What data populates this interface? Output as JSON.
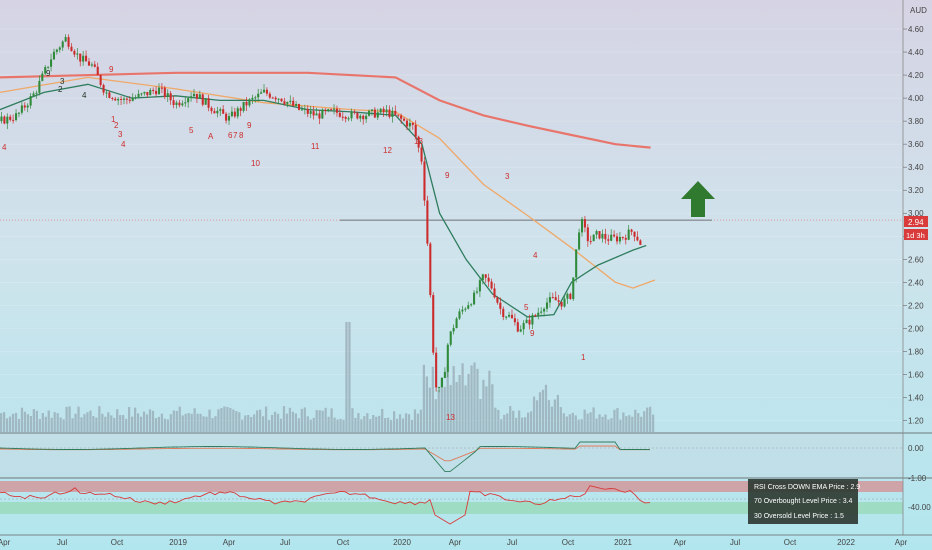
{
  "chart_data": {
    "type": "candlestick",
    "currency": "AUD",
    "price_axis": {
      "min": 1.1,
      "max": 4.8,
      "ticks": [
        "4.60",
        "4.40",
        "4.20",
        "4.00",
        "3.80",
        "3.60",
        "3.40",
        "3.20",
        "3.00",
        "2.80",
        "2.60",
        "2.40",
        "2.20",
        "2.00",
        "1.80",
        "1.60",
        "1.40",
        "1.20"
      ]
    },
    "time_axis": {
      "labels": [
        "Apr",
        "Jul",
        "Oct",
        "2019",
        "Apr",
        "Jul",
        "Oct",
        "2020",
        "Apr",
        "Jul",
        "Oct",
        "2021",
        "Apr",
        "Jul",
        "Oct",
        "2022",
        "Apr"
      ]
    },
    "last_price": "2.94",
    "last_price_value": 2.94,
    "interval_label": "1d 3h",
    "resistance_level": 2.94,
    "arrow_direction": "up",
    "price_path": [
      [
        0,
        3.8
      ],
      [
        0.02,
        3.85
      ],
      [
        0.04,
        4.05
      ],
      [
        0.06,
        4.38
      ],
      [
        0.075,
        4.52
      ],
      [
        0.09,
        4.35
      ],
      [
        0.105,
        4.28
      ],
      [
        0.12,
        4.05
      ],
      [
        0.14,
        3.98
      ],
      [
        0.16,
        4.02
      ],
      [
        0.18,
        4.08
      ],
      [
        0.2,
        3.95
      ],
      [
        0.22,
        4.05
      ],
      [
        0.24,
        3.92
      ],
      [
        0.26,
        3.82
      ],
      [
        0.28,
        3.95
      ],
      [
        0.3,
        4.05
      ],
      [
        0.32,
        4.0
      ],
      [
        0.34,
        3.9
      ],
      [
        0.36,
        3.85
      ],
      [
        0.38,
        3.88
      ],
      [
        0.4,
        3.85
      ],
      [
        0.42,
        3.86
      ],
      [
        0.44,
        3.88
      ],
      [
        0.455,
        3.82
      ],
      [
        0.47,
        3.75
      ],
      [
        0.48,
        3.45
      ],
      [
        0.485,
        2.9
      ],
      [
        0.49,
        2.2
      ],
      [
        0.495,
        1.5
      ],
      [
        0.5,
        1.45
      ],
      [
        0.505,
        1.6
      ],
      [
        0.51,
        1.9
      ],
      [
        0.52,
        2.1
      ],
      [
        0.53,
        2.2
      ],
      [
        0.54,
        2.28
      ],
      [
        0.55,
        2.45
      ],
      [
        0.56,
        2.35
      ],
      [
        0.57,
        2.15
      ],
      [
        0.58,
        2.1
      ],
      [
        0.59,
        2.0
      ],
      [
        0.6,
        2.05
      ],
      [
        0.61,
        2.12
      ],
      [
        0.62,
        2.22
      ],
      [
        0.63,
        2.25
      ],
      [
        0.64,
        2.22
      ],
      [
        0.65,
        2.3
      ],
      [
        0.655,
        2.65
      ],
      [
        0.66,
        2.95
      ],
      [
        0.67,
        2.75
      ],
      [
        0.68,
        2.82
      ],
      [
        0.69,
        2.78
      ],
      [
        0.7,
        2.78
      ],
      [
        0.71,
        2.8
      ],
      [
        0.72,
        2.85
      ],
      [
        0.73,
        2.72
      ]
    ],
    "moving_averages": [
      {
        "color": "#e8756b",
        "points": [
          [
            0,
            4.18
          ],
          [
            0.2,
            4.22
          ],
          [
            0.35,
            4.22
          ],
          [
            0.45,
            4.18
          ],
          [
            0.5,
            3.98
          ],
          [
            0.55,
            3.85
          ],
          [
            0.6,
            3.76
          ],
          [
            0.65,
            3.68
          ],
          [
            0.7,
            3.6
          ],
          [
            0.74,
            3.57
          ]
        ]
      },
      {
        "color": "#f0a868",
        "points": [
          [
            0,
            4.05
          ],
          [
            0.1,
            4.18
          ],
          [
            0.2,
            4.08
          ],
          [
            0.3,
            3.96
          ],
          [
            0.4,
            3.9
          ],
          [
            0.45,
            3.88
          ],
          [
            0.5,
            3.65
          ],
          [
            0.55,
            3.25
          ],
          [
            0.6,
            2.98
          ],
          [
            0.65,
            2.7
          ],
          [
            0.7,
            2.4
          ],
          [
            0.72,
            2.35
          ],
          [
            0.745,
            2.42
          ]
        ]
      },
      {
        "color": "#2f7d5e",
        "points": [
          [
            0,
            3.9
          ],
          [
            0.05,
            4.05
          ],
          [
            0.1,
            4.12
          ],
          [
            0.15,
            4.0
          ],
          [
            0.2,
            4.02
          ],
          [
            0.25,
            3.98
          ],
          [
            0.3,
            3.98
          ],
          [
            0.35,
            3.9
          ],
          [
            0.4,
            3.88
          ],
          [
            0.45,
            3.85
          ],
          [
            0.48,
            3.6
          ],
          [
            0.5,
            3.0
          ],
          [
            0.53,
            2.6
          ],
          [
            0.56,
            2.3
          ],
          [
            0.6,
            2.1
          ],
          [
            0.63,
            2.12
          ],
          [
            0.65,
            2.4
          ],
          [
            0.68,
            2.55
          ],
          [
            0.72,
            2.68
          ],
          [
            0.735,
            2.72
          ]
        ]
      }
    ],
    "td_sequence_red_labels": [
      "4",
      "9",
      "1",
      "2",
      "3",
      "4",
      "5",
      "A",
      "6",
      "7",
      "8",
      "9",
      "10",
      "11",
      "12",
      "13",
      "9",
      "3",
      "4",
      "5",
      "9",
      "1",
      "13"
    ],
    "td_sequence_green_labels": [
      "9",
      "3",
      "2",
      "4"
    ],
    "indicator_1": {
      "ticks": [
        "0.00",
        "-1.00"
      ]
    },
    "indicator_2": {
      "ticks": [
        "-40.00"
      ]
    },
    "info_box": [
      "RSI Cross DOWN EMA Price : 2.9",
      "70 Overbought Level Price : 3.4",
      "30 Oversold Level Price : 1.5"
    ]
  }
}
